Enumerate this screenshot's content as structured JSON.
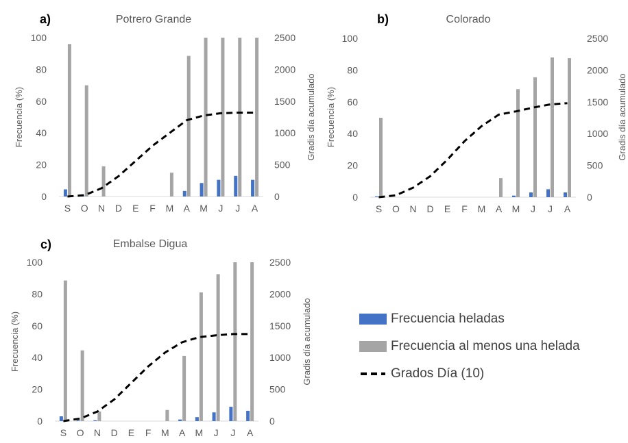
{
  "chart_data": [
    {
      "type": "bar",
      "panel_label": "a)",
      "title": "Potrero Grande",
      "categories": [
        "S",
        "O",
        "N",
        "D",
        "E",
        "F",
        "M",
        "A",
        "M",
        "J",
        "J",
        "A"
      ],
      "ylabel": "Frecuencia (%)",
      "y2label": "Gradis día acumulado",
      "ylim": [
        0,
        100
      ],
      "y2lim": [
        0,
        2500
      ],
      "yticks": [
        "0",
        "20",
        "40",
        "60",
        "80",
        "100"
      ],
      "y2ticks": [
        "0",
        "500",
        "1000",
        "1500",
        "2000",
        "2500"
      ],
      "series": [
        {
          "name": "Frecuencia heladas",
          "axis": "left",
          "type": "bar",
          "color": "#4472C4",
          "values": [
            4.5,
            0.8,
            0,
            0,
            0,
            0,
            0,
            3.5,
            8.5,
            10.5,
            13,
            10.5
          ]
        },
        {
          "name": "Frecuencia al menos una helada",
          "axis": "left",
          "type": "bar",
          "color": "#A5A5A5",
          "values": [
            96,
            70,
            19,
            0,
            0,
            0,
            15,
            88.5,
            100,
            100,
            100,
            100
          ]
        },
        {
          "name": "Grados Día (10)",
          "axis": "right",
          "type": "line",
          "color": "#000000",
          "values": [
            0,
            20,
            130,
            320,
            560,
            800,
            1000,
            1200,
            1275,
            1310,
            1320,
            1320
          ]
        }
      ]
    },
    {
      "type": "bar",
      "panel_label": "b)",
      "title": "Colorado",
      "categories": [
        "S",
        "O",
        "N",
        "D",
        "E",
        "F",
        "M",
        "A",
        "M",
        "J",
        "J",
        "A"
      ],
      "ylabel": "Frecuencia (%)",
      "y2label": "Gradis día acumulado",
      "ylim": [
        0,
        100
      ],
      "y2lim": [
        0,
        2500
      ],
      "yticks": [
        "0",
        "20",
        "40",
        "60",
        "80",
        "100"
      ],
      "y2ticks": [
        "0",
        "500",
        "1000",
        "1500",
        "2000",
        "2500"
      ],
      "series": [
        {
          "name": "Frecuencia heladas",
          "axis": "left",
          "type": "bar",
          "color": "#4472C4",
          "values": [
            0.5,
            0,
            0,
            0,
            0,
            0,
            0,
            0,
            1,
            3,
            5,
            3
          ]
        },
        {
          "name": "Frecuencia al menos una helada",
          "axis": "left",
          "type": "bar",
          "color": "#A5A5A5",
          "values": [
            50,
            0,
            0,
            0,
            0,
            0,
            0,
            12,
            68,
            75.5,
            88,
            87.5
          ]
        },
        {
          "name": "Grados Día (10)",
          "axis": "right",
          "type": "line",
          "color": "#000000",
          "values": [
            0,
            30,
            150,
            330,
            590,
            880,
            1120,
            1300,
            1350,
            1410,
            1460,
            1480
          ]
        }
      ]
    },
    {
      "type": "bar",
      "panel_label": "c)",
      "title": "Embalse Digua",
      "categories": [
        "S",
        "O",
        "N",
        "D",
        "E",
        "F",
        "M",
        "A",
        "M",
        "J",
        "J",
        "A"
      ],
      "ylabel": "Frecuencia (%)",
      "y2label": "Gradis día acumulado",
      "ylim": [
        0,
        100
      ],
      "y2lim": [
        0,
        2500
      ],
      "yticks": [
        "0",
        "20",
        "40",
        "60",
        "80",
        "100"
      ],
      "y2ticks": [
        "0",
        "500",
        "1000",
        "1500",
        "2000",
        "2500"
      ],
      "series": [
        {
          "name": "Frecuencia heladas",
          "axis": "left",
          "type": "bar",
          "color": "#4472C4",
          "values": [
            3,
            0.5,
            0.5,
            0,
            0,
            0,
            0,
            1,
            2.5,
            5.5,
            9,
            6.5
          ]
        },
        {
          "name": "Frecuencia al menos una helada",
          "axis": "left",
          "type": "bar",
          "color": "#A5A5A5",
          "values": [
            88.5,
            44.5,
            6,
            0,
            0,
            0,
            7,
            41,
            81,
            92.5,
            100,
            100
          ]
        },
        {
          "name": "Grados Día (10)",
          "axis": "right",
          "type": "line",
          "color": "#000000",
          "values": [
            0,
            40,
            150,
            340,
            600,
            860,
            1080,
            1240,
            1320,
            1350,
            1370,
            1370
          ]
        }
      ]
    }
  ],
  "legend": {
    "items": [
      {
        "label": "Frecuencia heladas",
        "kind": "bar",
        "color": "#4472C4"
      },
      {
        "label": "Frecuencia al menos una helada",
        "kind": "bar",
        "color": "#A5A5A5"
      },
      {
        "label": "Grados Día (10)",
        "kind": "dashed-line",
        "color": "#000000"
      }
    ]
  }
}
